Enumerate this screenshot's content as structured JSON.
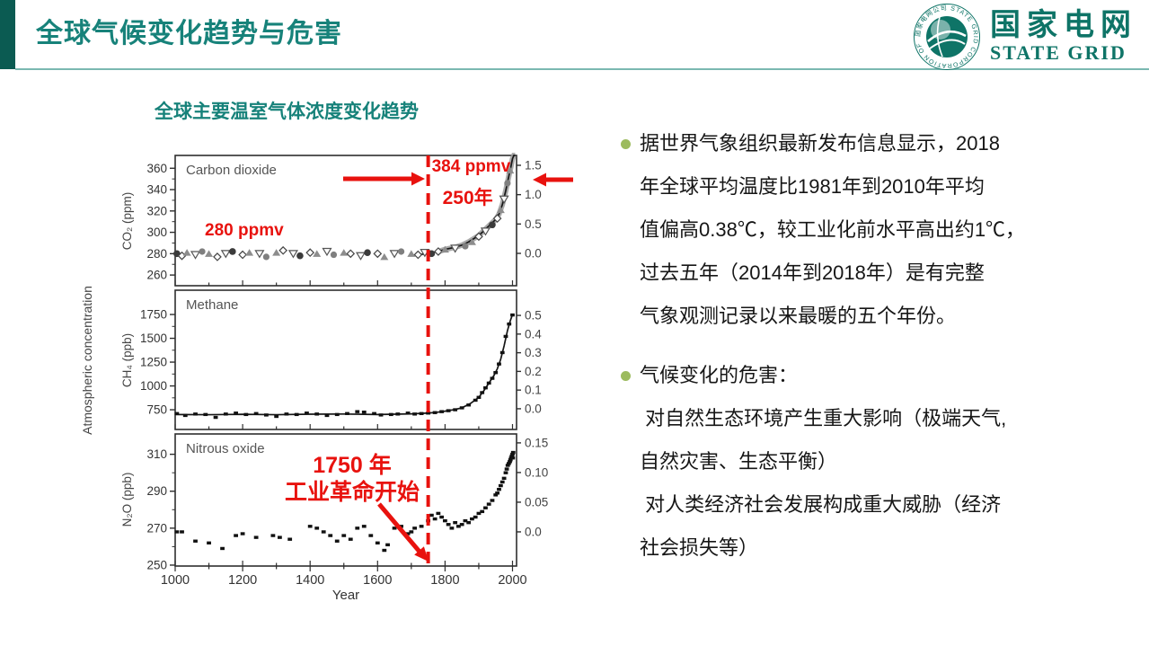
{
  "colors": {
    "accent_teal": "#17827a",
    "bar_teal": "#0b5b52",
    "rule_teal": "#7ab8b1",
    "logo_teal": "#0e7467",
    "red": "#e8120e",
    "bullet_green": "#9cbb5e",
    "ink": "#161616"
  },
  "header": {
    "title": "全球气候变化趋势与危害"
  },
  "logo": {
    "name_cn": "国家电网",
    "name_en": "STATE GRID",
    "ring_text": "国家电网公司 STATE GRID CORPORATION OF CHINA"
  },
  "figure": {
    "title": "全球主要温室气体浓度变化趋势"
  },
  "chart_data": {
    "type": "scatter",
    "title": "全球主要温室气体浓度变化趋势",
    "xlabel": "Year",
    "x_ticks": [
      1000,
      1200,
      1400,
      1600,
      1800,
      2000
    ],
    "x_range": [
      1000,
      2012
    ],
    "shared_ylabel": "Atmospheric concentration",
    "grid": false,
    "annotations": {
      "co2_peak": "384 ppmv",
      "era": "250年",
      "co2_preindustrial": "280 ppmv",
      "industrial_line1": "1750 年",
      "industrial_line2": "工业革命开始",
      "dashed_year": 1750
    },
    "panels": [
      {
        "id": "co2",
        "label": "Carbon dioxide",
        "ylabel": "CO₂ (ppm)",
        "y_ticks": [
          360,
          340,
          320,
          300,
          280,
          260
        ],
        "y_range": [
          250,
          372
        ],
        "right_ticks": [
          "1.5",
          "1.0",
          "0.5",
          "0.0"
        ],
        "right_tick_values": [
          1.5,
          1.0,
          0.5,
          0.0
        ],
        "right_range": [
          -0.551,
          1.668
        ],
        "scatter": [
          [
            1005,
            280
          ],
          [
            1020,
            278
          ],
          [
            1035,
            281
          ],
          [
            1060,
            279
          ],
          [
            1080,
            282
          ],
          [
            1100,
            280
          ],
          [
            1125,
            277
          ],
          [
            1150,
            280
          ],
          [
            1170,
            282
          ],
          [
            1200,
            279
          ],
          [
            1220,
            281
          ],
          [
            1250,
            280
          ],
          [
            1270,
            277
          ],
          [
            1300,
            281
          ],
          [
            1320,
            283
          ],
          [
            1350,
            280
          ],
          [
            1370,
            278
          ],
          [
            1400,
            281
          ],
          [
            1420,
            280
          ],
          [
            1450,
            282
          ],
          [
            1470,
            279
          ],
          [
            1500,
            281
          ],
          [
            1520,
            280
          ],
          [
            1550,
            278
          ],
          [
            1570,
            281
          ],
          [
            1600,
            280
          ],
          [
            1620,
            277
          ],
          [
            1650,
            280
          ],
          [
            1670,
            282
          ],
          [
            1700,
            280
          ],
          [
            1720,
            279
          ],
          [
            1740,
            281
          ],
          [
            1760,
            280
          ],
          [
            1780,
            282
          ],
          [
            1800,
            284
          ],
          [
            1830,
            285
          ],
          [
            1860,
            287
          ],
          [
            1880,
            291
          ],
          [
            1900,
            296
          ],
          [
            1920,
            301
          ],
          [
            1940,
            307
          ],
          [
            1955,
            313
          ],
          [
            1965,
            321
          ],
          [
            1975,
            331
          ],
          [
            1985,
            346
          ],
          [
            1993,
            358
          ]
        ],
        "line": [
          [
            1720,
            279
          ],
          [
            1750,
            280
          ],
          [
            1780,
            282
          ],
          [
            1800,
            284
          ],
          [
            1830,
            286
          ],
          [
            1850,
            288
          ],
          [
            1870,
            291
          ],
          [
            1890,
            295
          ],
          [
            1900,
            297
          ],
          [
            1910,
            300
          ],
          [
            1920,
            303
          ],
          [
            1930,
            306
          ],
          [
            1940,
            309
          ],
          [
            1950,
            312
          ],
          [
            1960,
            317
          ],
          [
            1970,
            326
          ],
          [
            1980,
            339
          ],
          [
            1990,
            354
          ],
          [
            1995,
            361
          ],
          [
            2000,
            369
          ],
          [
            2004,
            377
          ],
          [
            2008,
            384
          ]
        ]
      },
      {
        "id": "ch4",
        "label": "Methane",
        "ylabel": "CH₄ (ppb)",
        "y_ticks": [
          1750,
          1500,
          1250,
          1000,
          750
        ],
        "y_range": [
          543,
          2005
        ],
        "right_ticks": [
          "0.5",
          "0.4",
          "0.3",
          "0.2",
          "0.1",
          "0.0"
        ],
        "right_tick_values": [
          0.5,
          0.4,
          0.3,
          0.2,
          0.1,
          0.0
        ],
        "right_range": [
          -0.111,
          0.635
        ],
        "scatter": [
          [
            1005,
            710
          ],
          [
            1030,
            690
          ],
          [
            1060,
            705
          ],
          [
            1090,
            700
          ],
          [
            1120,
            670
          ],
          [
            1150,
            705
          ],
          [
            1180,
            715
          ],
          [
            1210,
            700
          ],
          [
            1240,
            710
          ],
          [
            1270,
            695
          ],
          [
            1300,
            680
          ],
          [
            1330,
            705
          ],
          [
            1360,
            700
          ],
          [
            1390,
            715
          ],
          [
            1420,
            705
          ],
          [
            1450,
            690
          ],
          [
            1480,
            700
          ],
          [
            1510,
            710
          ],
          [
            1540,
            730
          ],
          [
            1560,
            725
          ],
          [
            1590,
            710
          ],
          [
            1610,
            695
          ],
          [
            1640,
            700
          ],
          [
            1660,
            705
          ],
          [
            1690,
            715
          ],
          [
            1710,
            705
          ],
          [
            1730,
            710
          ],
          [
            1750,
            715
          ],
          [
            1770,
            720
          ],
          [
            1790,
            730
          ],
          [
            1810,
            740
          ],
          [
            1830,
            750
          ],
          [
            1850,
            770
          ],
          [
            1870,
            800
          ],
          [
            1890,
            850
          ],
          [
            1900,
            880
          ],
          [
            1910,
            930
          ],
          [
            1920,
            980
          ],
          [
            1930,
            1030
          ],
          [
            1940,
            1080
          ],
          [
            1950,
            1140
          ],
          [
            1960,
            1230
          ],
          [
            1970,
            1350
          ],
          [
            1980,
            1520
          ],
          [
            1990,
            1650
          ],
          [
            2000,
            1745
          ]
        ],
        "line": [
          [
            1000,
            700
          ],
          [
            1100,
            698
          ],
          [
            1200,
            702
          ],
          [
            1300,
            698
          ],
          [
            1400,
            703
          ],
          [
            1500,
            705
          ],
          [
            1600,
            700
          ],
          [
            1650,
            703
          ],
          [
            1700,
            707
          ],
          [
            1750,
            715
          ],
          [
            1775,
            723
          ],
          [
            1800,
            735
          ],
          [
            1825,
            750
          ],
          [
            1850,
            770
          ],
          [
            1875,
            815
          ],
          [
            1900,
            880
          ],
          [
            1915,
            950
          ],
          [
            1930,
            1030
          ],
          [
            1945,
            1110
          ],
          [
            1955,
            1180
          ],
          [
            1965,
            1280
          ],
          [
            1975,
            1420
          ],
          [
            1985,
            1580
          ],
          [
            1993,
            1680
          ],
          [
            2000,
            1750
          ]
        ]
      },
      {
        "id": "n2o",
        "label": "Nitrous oxide",
        "ylabel": "N₂O (ppb)",
        "y_ticks": [
          310,
          290,
          270,
          250
        ],
        "y_range": [
          249.5,
          321
        ],
        "right_ticks": [
          "0.15",
          "0.10",
          "0.05",
          "0.0"
        ],
        "right_tick_values": [
          0.15,
          0.1,
          0.05,
          0.0
        ],
        "right_range": [
          -0.0576,
          0.165
        ],
        "scatter": [
          [
            1005,
            268
          ],
          [
            1020,
            268
          ],
          [
            1060,
            263
          ],
          [
            1100,
            262
          ],
          [
            1140,
            259
          ],
          [
            1180,
            266
          ],
          [
            1200,
            267
          ],
          [
            1240,
            265
          ],
          [
            1290,
            266
          ],
          [
            1310,
            265
          ],
          [
            1340,
            264
          ],
          [
            1400,
            271
          ],
          [
            1420,
            270
          ],
          [
            1440,
            268
          ],
          [
            1460,
            266
          ],
          [
            1480,
            263
          ],
          [
            1500,
            266
          ],
          [
            1520,
            264
          ],
          [
            1540,
            270
          ],
          [
            1560,
            271
          ],
          [
            1580,
            266
          ],
          [
            1600,
            262
          ],
          [
            1620,
            258
          ],
          [
            1630,
            261
          ],
          [
            1650,
            270
          ],
          [
            1670,
            271
          ],
          [
            1690,
            267
          ],
          [
            1700,
            268
          ],
          [
            1710,
            270
          ],
          [
            1730,
            271
          ],
          [
            1750,
            274
          ],
          [
            1760,
            277
          ],
          [
            1770,
            275
          ],
          [
            1780,
            278
          ],
          [
            1790,
            276
          ],
          [
            1800,
            274
          ],
          [
            1810,
            272
          ],
          [
            1820,
            270
          ],
          [
            1830,
            273
          ],
          [
            1840,
            271
          ],
          [
            1850,
            272
          ],
          [
            1860,
            274
          ],
          [
            1870,
            273
          ],
          [
            1880,
            275
          ],
          [
            1890,
            276
          ],
          [
            1900,
            278
          ],
          [
            1910,
            279
          ],
          [
            1920,
            281
          ],
          [
            1930,
            283
          ],
          [
            1940,
            285
          ],
          [
            1950,
            288
          ],
          [
            1955,
            289
          ],
          [
            1960,
            291
          ],
          [
            1965,
            293
          ],
          [
            1970,
            295
          ],
          [
            1975,
            297
          ],
          [
            1980,
            300
          ],
          [
            1983,
            302
          ],
          [
            1986,
            304
          ],
          [
            1989,
            305
          ],
          [
            1992,
            306
          ],
          [
            1994,
            307
          ],
          [
            1996,
            308
          ],
          [
            1998,
            309
          ],
          [
            2000,
            310
          ],
          [
            2001,
            308
          ],
          [
            2002,
            311
          ]
        ],
        "line": []
      }
    ]
  },
  "right_panel": {
    "bullets": [
      {
        "lines": [
          "据世界气象组织最新发布信息显示，2018",
          "年全球平均温度比1981年到2010年平均",
          "值偏高0.38℃，较工业化前水平高出约1℃，",
          "过去五年（2014年到2018年）是有完整",
          "气象观测记录以来最暖的五个年份。"
        ]
      },
      {
        "lines": [
          "气候变化的危害：",
          " 对自然生态环境产生重大影响（极端天气,",
          "自然灾害、生态平衡）",
          " 对人类经济社会发展构成重大威胁（经济",
          "社会损失等）"
        ]
      }
    ]
  }
}
